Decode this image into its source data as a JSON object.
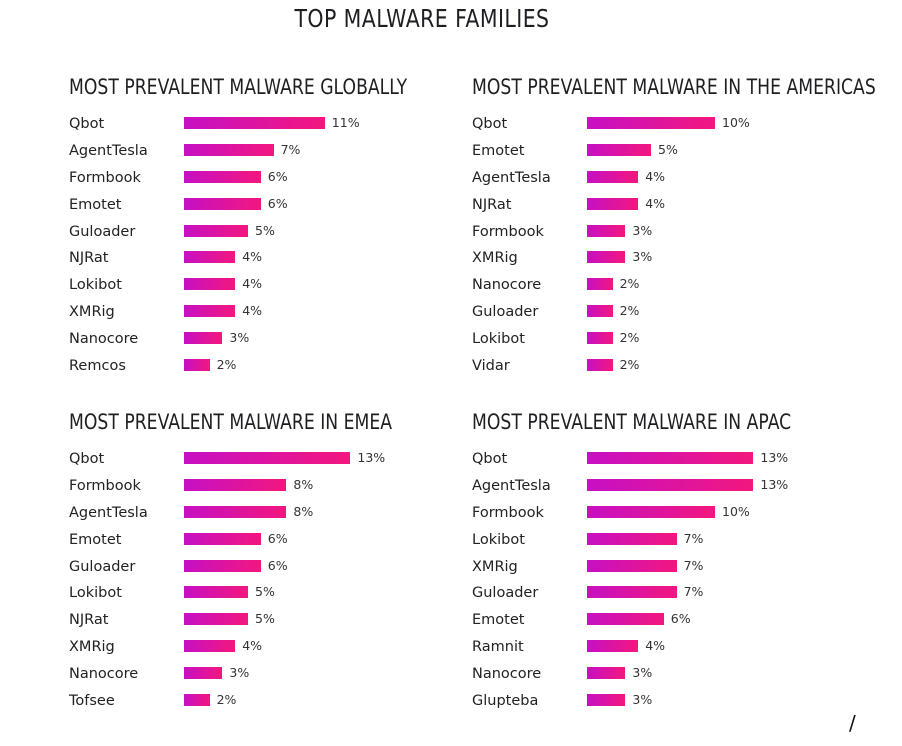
{
  "title": "TOP MALWARE FAMILIES",
  "colors": {
    "bar_start": "#c610c4",
    "bar_end": "#f3177e"
  },
  "corner_mark": "/",
  "chart_data": [
    {
      "type": "bar",
      "orientation": "horizontal",
      "title": "MOST PREVALENT MALWARE GLOBALLY",
      "categories": [
        "Qbot",
        "AgentTesla",
        "Formbook",
        "Emotet",
        "Guloader",
        "NJRat",
        "Lokibot",
        "XMRig",
        "Nanocore",
        "Remcos"
      ],
      "values": [
        11,
        7,
        6,
        6,
        5,
        4,
        4,
        4,
        3,
        2
      ],
      "value_labels": [
        "11%",
        "7%",
        "6%",
        "6%",
        "5%",
        "4%",
        "4%",
        "4%",
        "3%",
        "2%"
      ],
      "unit": "%"
    },
    {
      "type": "bar",
      "orientation": "horizontal",
      "title": "MOST PREVALENT MALWARE IN THE AMERICAS",
      "categories": [
        "Qbot",
        "Emotet",
        "AgentTesla",
        "NJRat",
        "Formbook",
        "XMRig",
        "Nanocore",
        "Guloader",
        "Lokibot",
        "Vidar"
      ],
      "values": [
        10,
        5,
        4,
        4,
        3,
        3,
        2,
        2,
        2,
        2
      ],
      "value_labels": [
        "10%",
        "5%",
        "4%",
        "4%",
        "3%",
        "3%",
        "2%",
        "2%",
        "2%",
        "2%"
      ],
      "unit": "%"
    },
    {
      "type": "bar",
      "orientation": "horizontal",
      "title": "MOST PREVALENT MALWARE IN EMEA",
      "categories": [
        "Qbot",
        "Formbook",
        "AgentTesla",
        "Emotet",
        "Guloader",
        "Lokibot",
        "NJRat",
        "XMRig",
        "Nanocore",
        "Tofsee"
      ],
      "values": [
        13,
        8,
        8,
        6,
        6,
        5,
        5,
        4,
        3,
        2
      ],
      "value_labels": [
        "13%",
        "8%",
        "8%",
        "6%",
        "6%",
        "5%",
        "5%",
        "4%",
        "3%",
        "2%"
      ],
      "unit": "%"
    },
    {
      "type": "bar",
      "orientation": "horizontal",
      "title": "MOST PREVALENT MALWARE IN APAC",
      "categories": [
        "Qbot",
        "AgentTesla",
        "Formbook",
        "Lokibot",
        "XMRig",
        "Guloader",
        "Emotet",
        "Ramnit",
        "Nanocore",
        "Glupteba"
      ],
      "values": [
        13,
        13,
        10,
        7,
        7,
        7,
        6,
        4,
        3,
        3
      ],
      "value_labels": [
        "13%",
        "13%",
        "10%",
        "7%",
        "7%",
        "7%",
        "6%",
        "4%",
        "3%",
        "3%"
      ],
      "unit": "%"
    }
  ]
}
